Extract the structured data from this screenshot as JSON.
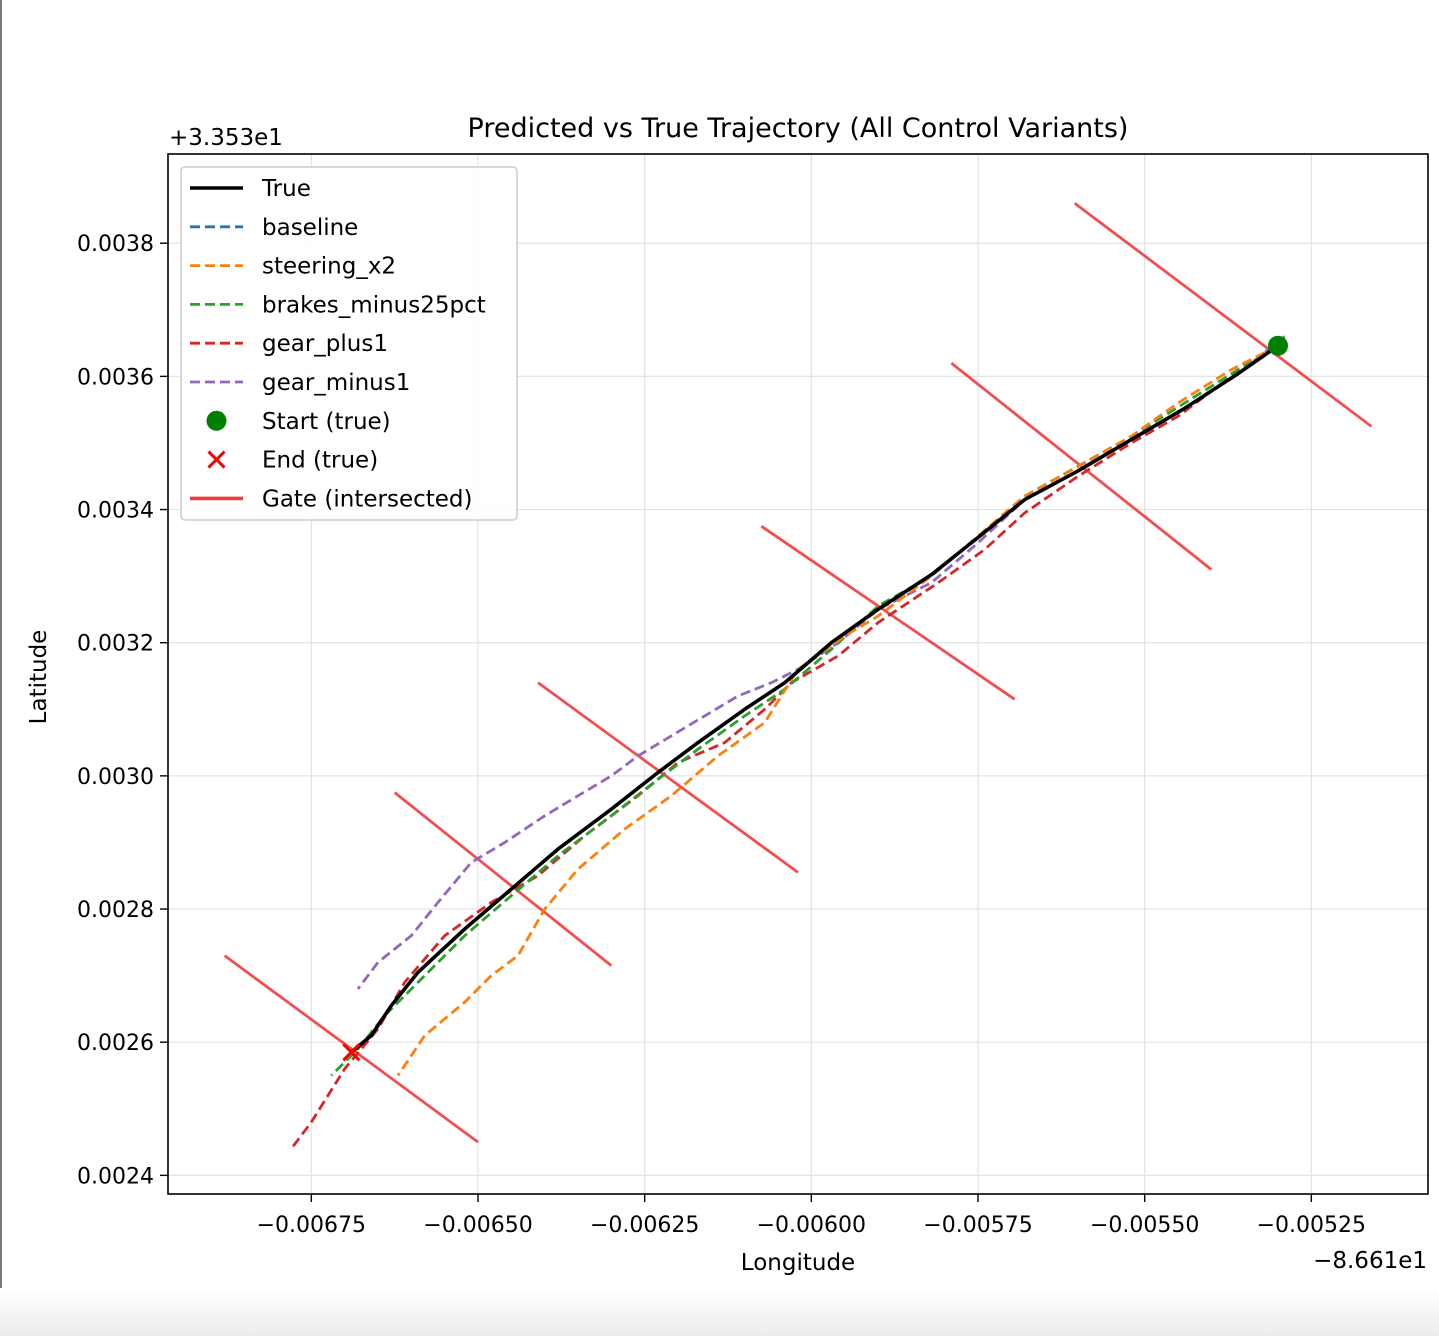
{
  "chart_data": {
    "type": "line",
    "title": "Predicted vs True Trajectory (All Control Variants)",
    "xlabel": "Longitude",
    "ylabel": "Latitude",
    "x_offset_label": "−8.661e1",
    "y_offset_label": "+3.353e1",
    "xlim": [
      -0.006965,
      -0.005075
    ],
    "ylim": [
      0.002372,
      0.003934
    ],
    "x_ticks": [
      -0.00675,
      -0.0065,
      -0.00625,
      -0.006,
      -0.00575,
      -0.0055,
      -0.00525
    ],
    "x_tick_labels": [
      "−0.00675",
      "−0.00650",
      "−0.00625",
      "−0.00600",
      "−0.00575",
      "−0.00550",
      "−0.00525"
    ],
    "y_ticks": [
      0.0024,
      0.0026,
      0.0028,
      0.003,
      0.0032,
      0.0034,
      0.0036,
      0.0038
    ],
    "y_tick_labels": [
      "0.0024",
      "0.0026",
      "0.0028",
      "0.0030",
      "0.0032",
      "0.0034",
      "0.0036",
      "0.0038"
    ],
    "grid": true,
    "legend_position": "top-left",
    "series": [
      {
        "name": "True",
        "color": "#000000",
        "style": "solid",
        "points": [
          [
            -0.0053,
            0.003646
          ],
          [
            -0.00536,
            0.003604
          ],
          [
            -0.00544,
            0.003552
          ],
          [
            -0.00552,
            0.003505
          ],
          [
            -0.0056,
            0.003458
          ],
          [
            -0.00568,
            0.003415
          ],
          [
            -0.00575,
            0.003358
          ],
          [
            -0.00582,
            0.003302
          ],
          [
            -0.0059,
            0.00325
          ],
          [
            -0.00597,
            0.0032
          ],
          [
            -0.00604,
            0.00314
          ],
          [
            -0.0061,
            0.0031
          ],
          [
            -0.00617,
            0.00305
          ],
          [
            -0.00623,
            0.003005
          ],
          [
            -0.0063,
            0.00295
          ],
          [
            -0.00638,
            0.00289
          ],
          [
            -0.00645,
            0.00283
          ],
          [
            -0.00652,
            0.00277
          ],
          [
            -0.00659,
            0.002705
          ],
          [
            -0.00663,
            0.002655
          ],
          [
            -0.00666,
            0.00261
          ],
          [
            -0.00669,
            0.002585
          ]
        ]
      },
      {
        "name": "baseline",
        "color": "#1f77b4",
        "style": "dashed",
        "points": [
          [
            -0.0053,
            0.003646
          ],
          [
            -0.00536,
            0.003604
          ],
          [
            -0.00544,
            0.003552
          ],
          [
            -0.00552,
            0.003505
          ],
          [
            -0.0056,
            0.003458
          ],
          [
            -0.00568,
            0.003415
          ],
          [
            -0.00575,
            0.003358
          ],
          [
            -0.00582,
            0.003302
          ],
          [
            -0.0059,
            0.00325
          ],
          [
            -0.00597,
            0.0032
          ],
          [
            -0.00604,
            0.00314
          ],
          [
            -0.0061,
            0.0031
          ],
          [
            -0.00617,
            0.00305
          ],
          [
            -0.00623,
            0.003005
          ],
          [
            -0.0063,
            0.00295
          ],
          [
            -0.00638,
            0.00289
          ],
          [
            -0.00645,
            0.00283
          ],
          [
            -0.00652,
            0.00277
          ],
          [
            -0.00659,
            0.002705
          ],
          [
            -0.00663,
            0.002655
          ],
          [
            -0.00666,
            0.00261
          ],
          [
            -0.00669,
            0.002585
          ]
        ]
      },
      {
        "name": "steering_x2",
        "color": "#ff7f0e",
        "style": "dashed",
        "points": [
          [
            -0.0053,
            0.003646
          ],
          [
            -0.00537,
            0.00361
          ],
          [
            -0.00545,
            0.00356
          ],
          [
            -0.00552,
            0.00351
          ],
          [
            -0.00559,
            0.00347
          ],
          [
            -0.00568,
            0.00342
          ],
          [
            -0.00575,
            0.00336
          ],
          [
            -0.00582,
            0.0033
          ],
          [
            -0.0059,
            0.00324
          ],
          [
            -0.00595,
            0.00321
          ],
          [
            -0.00602,
            0.00316
          ],
          [
            -0.00607,
            0.00308
          ],
          [
            -0.00614,
            0.00303
          ],
          [
            -0.00621,
            0.00297
          ],
          [
            -0.00628,
            0.00292
          ],
          [
            -0.00635,
            0.00286
          ],
          [
            -0.0064,
            0.0028
          ],
          [
            -0.00644,
            0.00273
          ],
          [
            -0.00648,
            0.0027
          ],
          [
            -0.00652,
            0.00266
          ],
          [
            -0.00658,
            0.00261
          ],
          [
            -0.00662,
            0.00255
          ]
        ]
      },
      {
        "name": "brakes_minus25pct",
        "color": "#2ca02c",
        "style": "dashed",
        "points": [
          [
            -0.0053,
            0.003646
          ],
          [
            -0.00536,
            0.00361
          ],
          [
            -0.00544,
            0.00356
          ],
          [
            -0.00552,
            0.00351
          ],
          [
            -0.0056,
            0.003465
          ],
          [
            -0.00568,
            0.00342
          ],
          [
            -0.00575,
            0.00336
          ],
          [
            -0.00582,
            0.0033
          ],
          [
            -0.0059,
            0.003255
          ],
          [
            -0.00597,
            0.00319
          ],
          [
            -0.00604,
            0.00313
          ],
          [
            -0.0061,
            0.00309
          ],
          [
            -0.00617,
            0.00304
          ],
          [
            -0.00623,
            0.002995
          ],
          [
            -0.0063,
            0.00294
          ],
          [
            -0.00638,
            0.00288
          ],
          [
            -0.00645,
            0.00282
          ],
          [
            -0.00652,
            0.00276
          ],
          [
            -0.00659,
            0.00269
          ],
          [
            -0.00664,
            0.00264
          ],
          [
            -0.00668,
            0.00259
          ],
          [
            -0.00672,
            0.00255
          ]
        ]
      },
      {
        "name": "gear_plus1",
        "color": "#d62728",
        "style": "dashed",
        "points": [
          [
            -0.0053,
            0.003646
          ],
          [
            -0.00537,
            0.0036
          ],
          [
            -0.00545,
            0.00354
          ],
          [
            -0.00552,
            0.0035
          ],
          [
            -0.0056,
            0.00345
          ],
          [
            -0.00568,
            0.003395
          ],
          [
            -0.00574,
            0.00334
          ],
          [
            -0.00581,
            0.00329
          ],
          [
            -0.0059,
            0.00323
          ],
          [
            -0.00596,
            0.00318
          ],
          [
            -0.00603,
            0.00314
          ],
          [
            -0.00607,
            0.0031
          ],
          [
            -0.00613,
            0.00305
          ],
          [
            -0.0062,
            0.00302
          ],
          [
            -0.00626,
            0.00297
          ],
          [
            -0.00634,
            0.00291
          ],
          [
            -0.00641,
            0.00285
          ],
          [
            -0.00648,
            0.00281
          ],
          [
            -0.00655,
            0.00276
          ],
          [
            -0.00661,
            0.00269
          ],
          [
            -0.00665,
            0.00262
          ],
          [
            -0.0067,
            0.00256
          ],
          [
            -0.00675,
            0.00248
          ],
          [
            -0.00678,
            0.00244
          ]
        ]
      },
      {
        "name": "gear_minus1",
        "color": "#9467bd",
        "style": "dashed",
        "points": [
          [
            -0.00529,
            0.00366
          ],
          [
            -0.00536,
            0.003604
          ],
          [
            -0.00544,
            0.003552
          ],
          [
            -0.00552,
            0.003505
          ],
          [
            -0.0056,
            0.003458
          ],
          [
            -0.00568,
            0.003415
          ],
          [
            -0.00575,
            0.00335
          ],
          [
            -0.00582,
            0.00329
          ],
          [
            -0.0059,
            0.00325
          ],
          [
            -0.00596,
            0.0032
          ],
          [
            -0.00602,
            0.00316
          ],
          [
            -0.00606,
            0.00314
          ],
          [
            -0.00611,
            0.00312
          ],
          [
            -0.00616,
            0.00309
          ],
          [
            -0.00621,
            0.00306
          ],
          [
            -0.00626,
            0.00303
          ],
          [
            -0.0063,
            0.003
          ],
          [
            -0.00635,
            0.00297
          ],
          [
            -0.0064,
            0.00294
          ],
          [
            -0.00646,
            0.0029
          ],
          [
            -0.00651,
            0.00287
          ],
          [
            -0.00656,
            0.00281
          ],
          [
            -0.0066,
            0.00276
          ],
          [
            -0.00665,
            0.00272
          ],
          [
            -0.00668,
            0.00268
          ]
        ]
      }
    ],
    "start_point": {
      "name": "Start (true)",
      "x": -0.0053,
      "y": 0.003646,
      "color": "#008000"
    },
    "end_point": {
      "name": "End (true)",
      "x": -0.00669,
      "y": 0.002585,
      "color": "#ff0000"
    },
    "gates": {
      "name": "Gate (intersected)",
      "color": "#f03c3c",
      "segments": [
        [
          [
            -0.005605,
            0.00386
          ],
          [
            -0.00516,
            0.003525
          ]
        ],
        [
          [
            -0.00579,
            0.00362
          ],
          [
            -0.0054,
            0.00331
          ]
        ],
        [
          [
            -0.006075,
            0.003375
          ],
          [
            -0.005695,
            0.003115
          ]
        ],
        [
          [
            -0.00641,
            0.00314
          ],
          [
            -0.00602,
            0.002855
          ]
        ],
        [
          [
            -0.006625,
            0.002975
          ],
          [
            -0.0063,
            0.002715
          ]
        ],
        [
          [
            -0.00688,
            0.00273
          ],
          [
            -0.0065,
            0.00245
          ]
        ]
      ]
    }
  }
}
